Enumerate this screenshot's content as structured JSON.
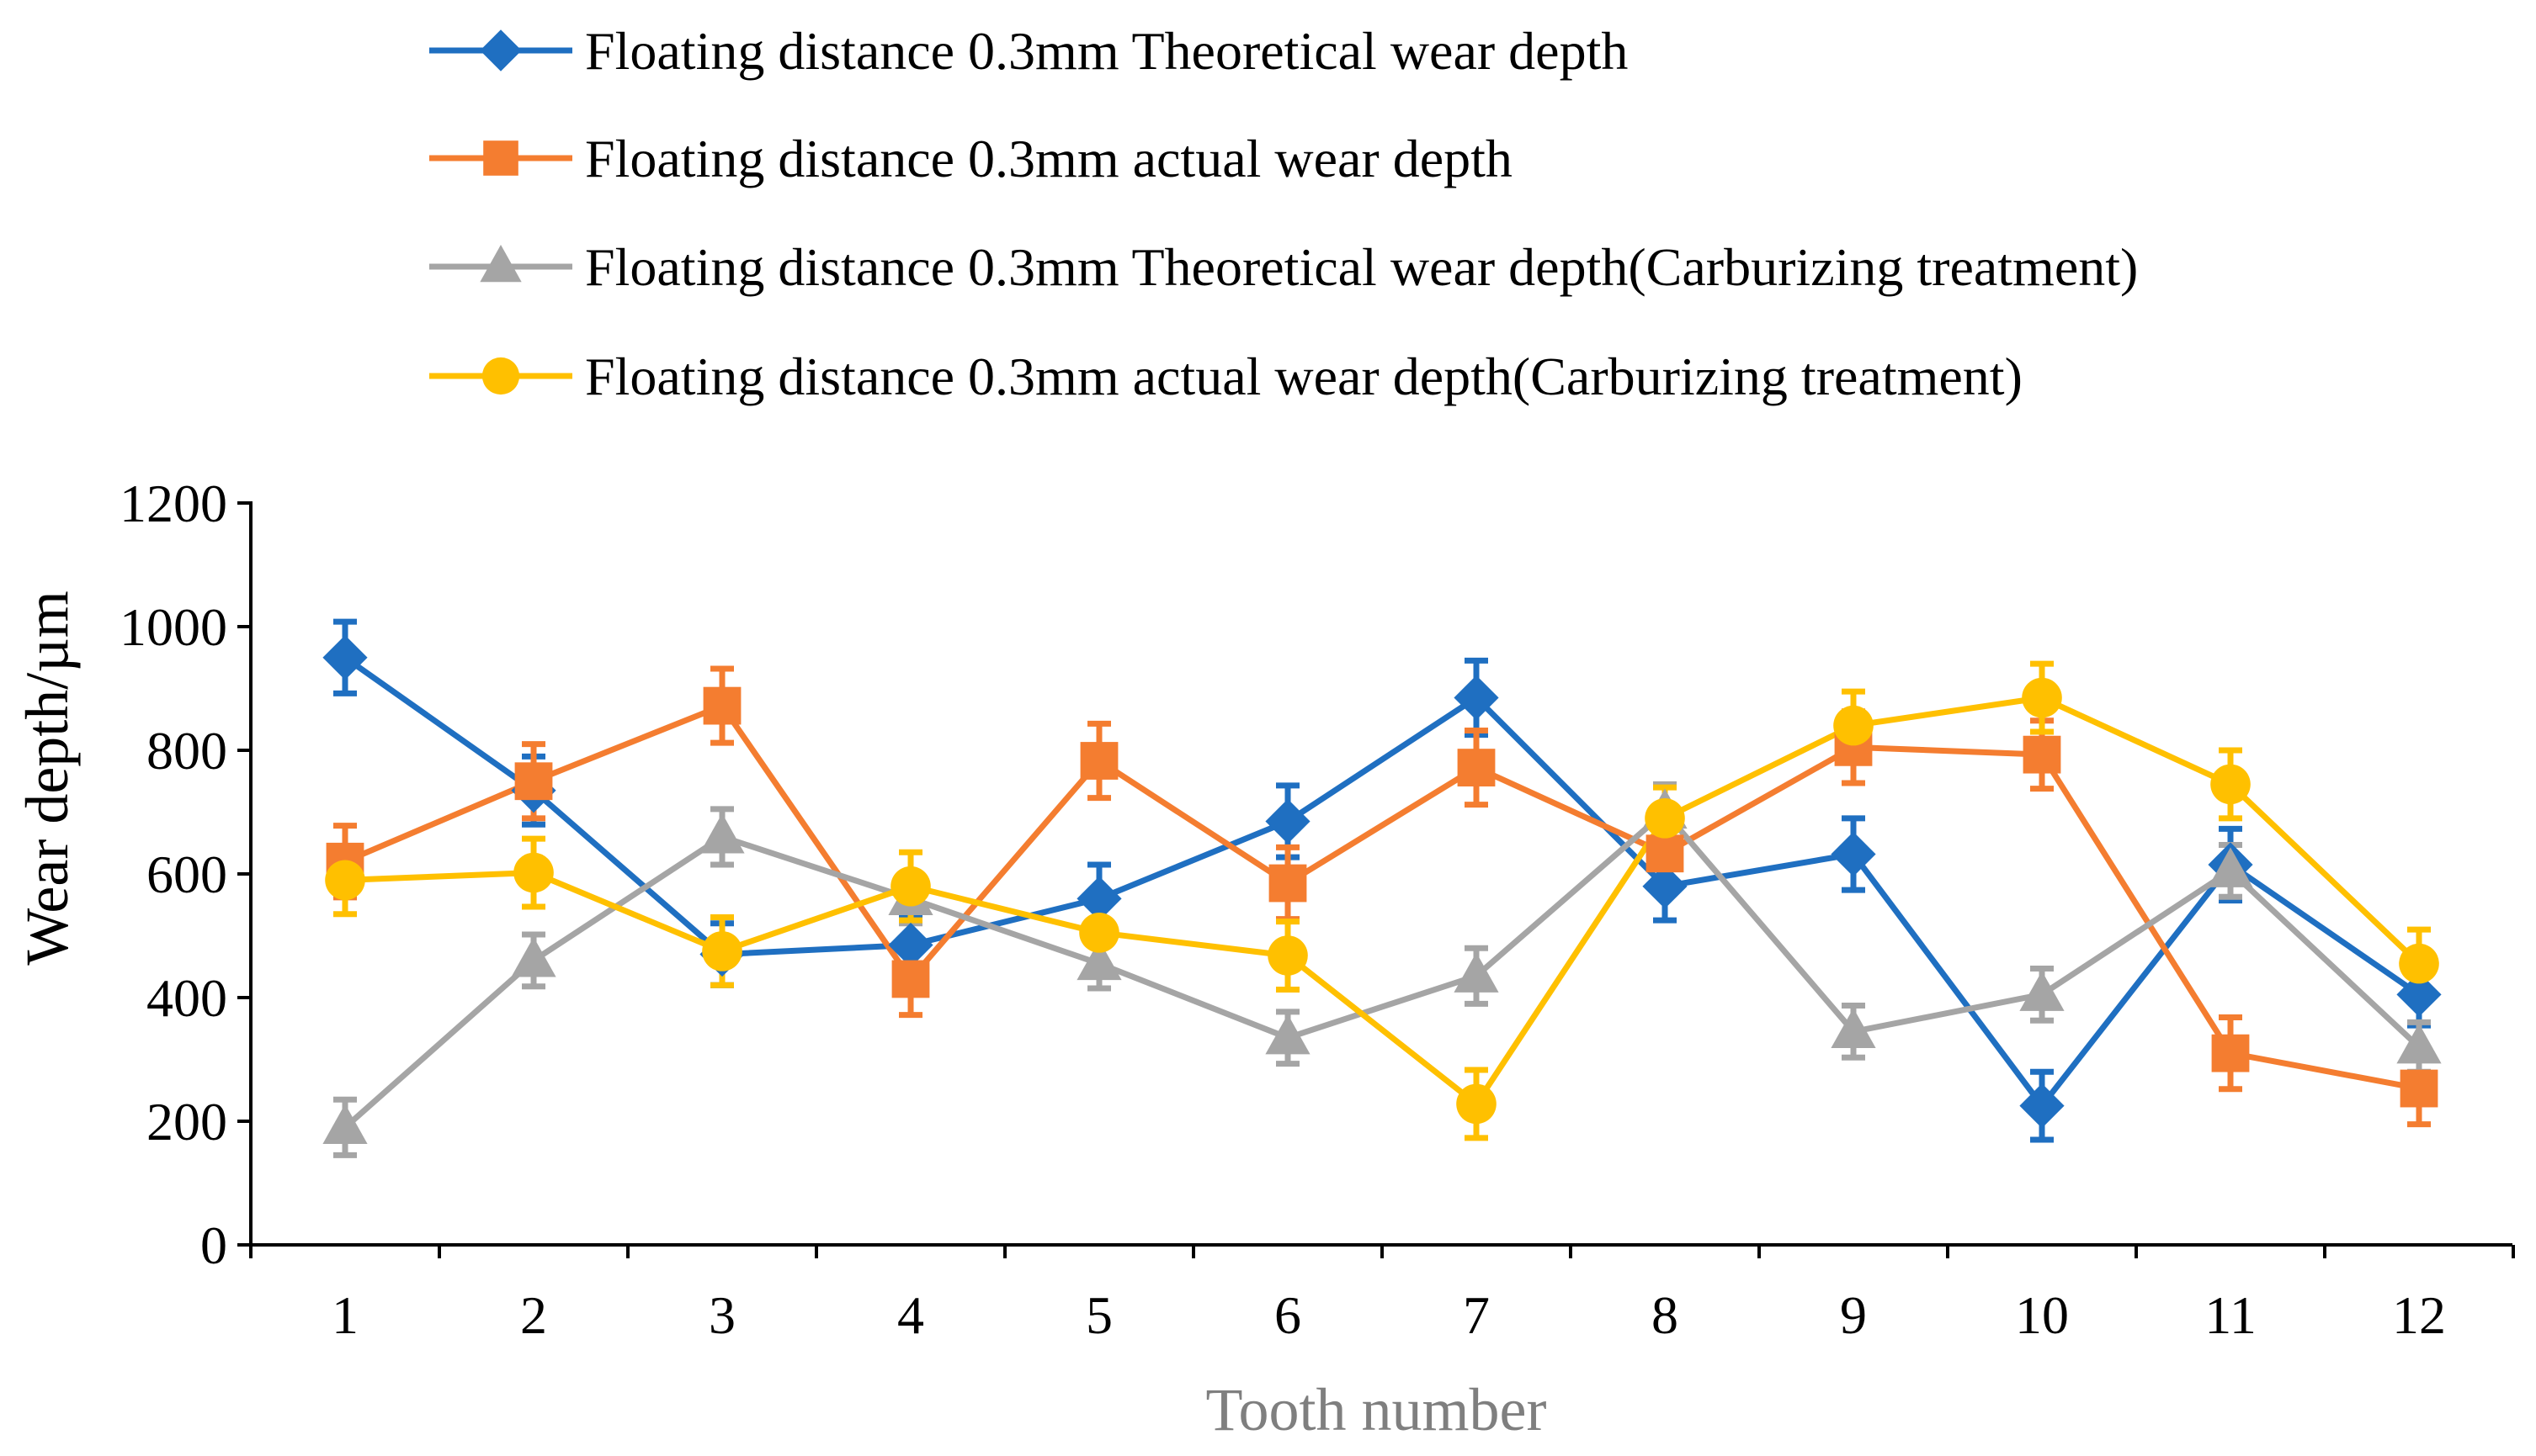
{
  "chart_data": {
    "type": "line",
    "title": "",
    "xlabel": "Tooth number",
    "ylabel": "Wear depth/µm",
    "categories": [
      "1",
      "2",
      "3",
      "4",
      "5",
      "6",
      "7",
      "8",
      "9",
      "10",
      "11",
      "12"
    ],
    "ylim": [
      0,
      1200
    ],
    "yticks": [
      "0",
      "200",
      "400",
      "600",
      "800",
      "1000",
      "1200"
    ],
    "grid": false,
    "legend_position": "top",
    "series": [
      {
        "name": "Floating distance 0.3mm Theoretical wear depth",
        "color": "#1f6fc1",
        "marker": "diamond",
        "values": [
          950,
          735,
          470,
          485,
          560,
          685,
          885,
          580,
          632,
          225,
          615,
          405
        ],
        "error": [
          58,
          55,
          50,
          45,
          55,
          58,
          60,
          55,
          58,
          55,
          58,
          50
        ]
      },
      {
        "name": "Floating distance 0.3mm actual wear depth",
        "color": "#f47d30",
        "marker": "square",
        "values": [
          620,
          750,
          872,
          430,
          783,
          585,
          772,
          633,
          805,
          793,
          310,
          253
        ],
        "error": [
          58,
          60,
          60,
          58,
          60,
          58,
          60,
          55,
          58,
          55,
          58,
          58
        ]
      },
      {
        "name": "Floating distance 0.3mm Theoretical wear depth(Carburizing treatment)",
        "color": "#a5a5a5",
        "marker": "triangle",
        "values": [
          190,
          460,
          660,
          560,
          455,
          335,
          435,
          700,
          345,
          405,
          605,
          320
        ],
        "error": [
          45,
          42,
          45,
          40,
          40,
          42,
          45,
          45,
          42,
          42,
          42,
          40
        ]
      },
      {
        "name": "Floating distance 0.3mm actual  wear depth(Carburizing treatment)",
        "color": "#ffc000",
        "marker": "circle",
        "values": [
          590,
          602,
          475,
          580,
          505,
          468,
          228,
          690,
          840,
          885,
          745,
          455
        ],
        "error": [
          55,
          55,
          55,
          55,
          50,
          55,
          55,
          50,
          55,
          55,
          55,
          55
        ]
      }
    ]
  }
}
